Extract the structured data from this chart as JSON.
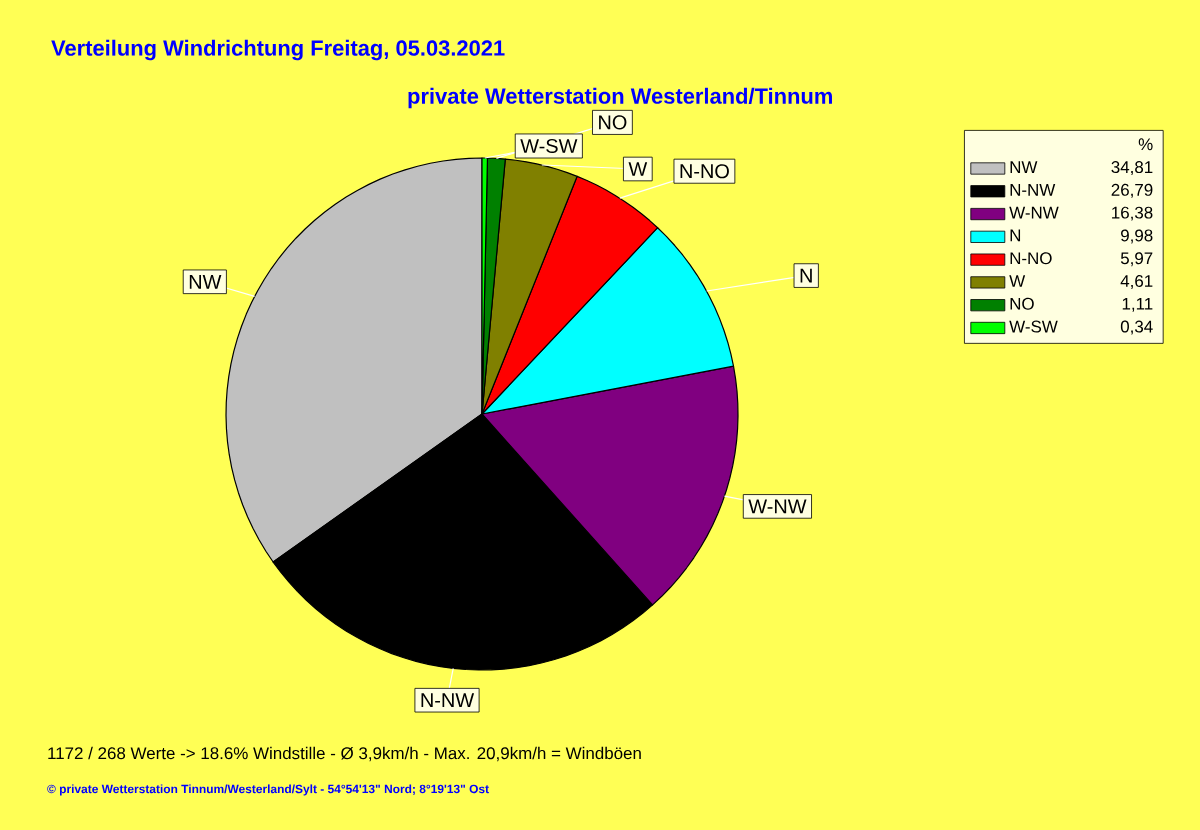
{
  "chart_data": {
    "type": "pie",
    "title": "Verteilung Windrichtung   Freitag, 05.03.2021",
    "subtitle": "private Wetterstation Westerland/Tinnum",
    "categories": [
      "NW",
      "N-NW",
      "W-NW",
      "N",
      "N-NO",
      "W",
      "NO",
      "W-SW"
    ],
    "values": [
      34.81,
      26.79,
      16.38,
      9.98,
      5.97,
      4.61,
      1.11,
      0.34
    ],
    "value_labels": [
      "34,81",
      "26,79",
      "16,38",
      "9,98",
      "5,97",
      "4,61",
      "1,11",
      "0,34"
    ],
    "colors": [
      "#c0c0c0",
      "#000000",
      "#800080",
      "#00ffff",
      "#ff0000",
      "#808000",
      "#008000",
      "#00ff00"
    ],
    "legend": "right",
    "legend_title": "%",
    "annotations": [
      "1172 / 268 Werte  -> 18.6% Windstille   -   Ø 3,9km/h  -  Max. 20,9km/h = Windböen",
      "© private Wetterstation Tinnum/Westerland/Sylt   -   54°54'13\" Nord; 8°19'13\" Ost"
    ]
  }
}
